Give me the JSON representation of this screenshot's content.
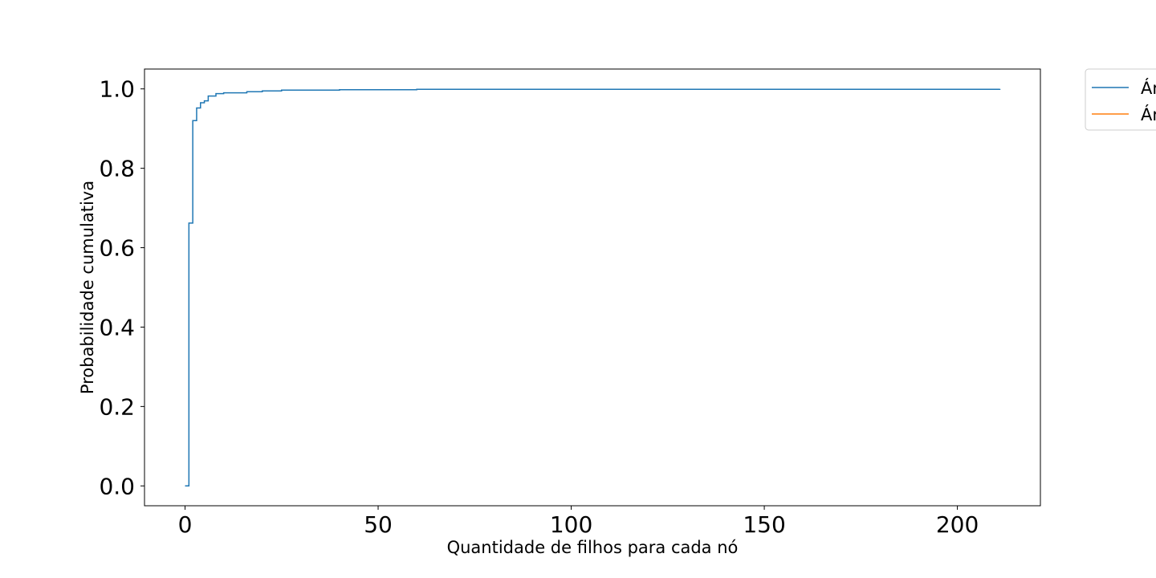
{
  "chart_data": {
    "type": "line",
    "title": "",
    "xlabel": "Quantidade de filhos para cada nó",
    "ylabel": "Probabilidade cumulativa",
    "xlim": [
      -10.5,
      221.5
    ],
    "ylim": [
      -0.05,
      1.05
    ],
    "xticks": [
      0,
      50,
      100,
      150,
      200
    ],
    "yticks": [
      0.0,
      0.2,
      0.4,
      0.6,
      0.8,
      1.0
    ],
    "xtick_labels": [
      "0",
      "50",
      "100",
      "150",
      "200"
    ],
    "ytick_labels": [
      "0.0",
      "0.2",
      "0.4",
      "0.6",
      "0.8",
      "1.0"
    ],
    "grid": false,
    "legend_position": "outside-top-right",
    "step": true,
    "series": [
      {
        "name": "Ár",
        "color": "#1f77b4",
        "x": [
          0,
          1,
          2,
          3,
          4,
          5,
          6,
          8,
          10,
          16,
          20,
          25,
          40,
          60,
          211
        ],
        "y": [
          0.0,
          0.662,
          0.92,
          0.952,
          0.965,
          0.97,
          0.982,
          0.988,
          0.99,
          0.993,
          0.995,
          0.997,
          0.998,
          0.999,
          1.0
        ]
      },
      {
        "name": "Ár",
        "color": "#ff7f0e",
        "x": [],
        "y": []
      }
    ]
  }
}
